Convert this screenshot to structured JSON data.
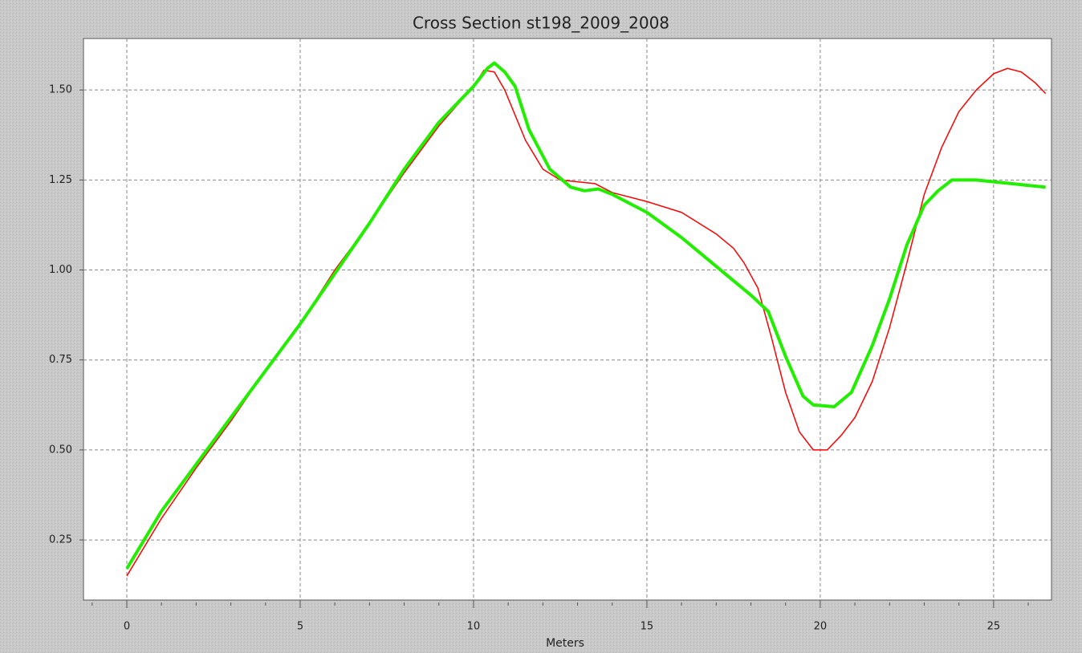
{
  "chart_data": {
    "type": "line",
    "title": "Cross Section st198_2009_2008",
    "x_label": "Meters",
    "xlim": [
      -1.25,
      26.67
    ],
    "ylim": [
      0.083,
      1.643
    ],
    "xticks": [
      0,
      5,
      10,
      15,
      20,
      25
    ],
    "xminorticks": [
      -1,
      1,
      2,
      3,
      4,
      6,
      7,
      8,
      9,
      11,
      12,
      13,
      14,
      16,
      17,
      18,
      19,
      21,
      22,
      23,
      24,
      26
    ],
    "yticks": [
      0.25,
      {
        "value": 0.5,
        "label": "0.50"
      },
      0.75,
      {
        "value": 1,
        "label": "1.00"
      },
      1.25,
      {
        "value": 1.5,
        "label": "1.50"
      }
    ],
    "grid": true,
    "series": [
      {
        "color": "#ff0000",
        "width": 1.5,
        "x": [
          0,
          1,
          2,
          3,
          4,
          5,
          6,
          7,
          8,
          9,
          10,
          10.3,
          10.6,
          10.9,
          11.5,
          12,
          12.5,
          13,
          13.5,
          14,
          15,
          16,
          17,
          17.5,
          17.8,
          18.2,
          18.6,
          19,
          19.4,
          19.8,
          20.2,
          20.6,
          21,
          21.5,
          22,
          22.5,
          23,
          23.5,
          24,
          24.5,
          25,
          25.4,
          25.8,
          26.2,
          26.5
        ],
        "values": [
          0.15,
          0.31,
          0.45,
          0.58,
          0.72,
          0.85,
          1.0,
          1.13,
          1.27,
          1.4,
          1.51,
          1.555,
          1.55,
          1.5,
          1.36,
          1.28,
          1.25,
          1.245,
          1.24,
          1.215,
          1.19,
          1.16,
          1.1,
          1.06,
          1.02,
          0.95,
          0.81,
          0.66,
          0.55,
          0.5,
          0.5,
          0.54,
          0.59,
          0.69,
          0.84,
          1.02,
          1.21,
          1.34,
          1.44,
          1.5,
          1.545,
          1.56,
          1.55,
          1.52,
          1.49
        ]
      },
      {
        "color": "#22ee00",
        "width": 4,
        "x": [
          0,
          1,
          2,
          3,
          4,
          5,
          6,
          7,
          8,
          9,
          10,
          10.4,
          10.6,
          10.9,
          11.2,
          11.6,
          12.2,
          12.8,
          13.2,
          13.6,
          14,
          15,
          16,
          17,
          18,
          18.5,
          19,
          19.5,
          19.8,
          20.4,
          20.9,
          21.5,
          22,
          22.5,
          23,
          23.4,
          23.8,
          24.5,
          25,
          26,
          26.5
        ],
        "values": [
          0.17,
          0.33,
          0.46,
          0.59,
          0.72,
          0.85,
          0.99,
          1.13,
          1.28,
          1.41,
          1.51,
          1.56,
          1.575,
          1.55,
          1.51,
          1.39,
          1.28,
          1.23,
          1.22,
          1.225,
          1.21,
          1.16,
          1.09,
          1.01,
          0.93,
          0.885,
          0.76,
          0.65,
          0.625,
          0.62,
          0.66,
          0.79,
          0.92,
          1.07,
          1.18,
          1.22,
          1.25,
          1.25,
          1.245,
          1.235,
          1.23
        ]
      }
    ]
  }
}
